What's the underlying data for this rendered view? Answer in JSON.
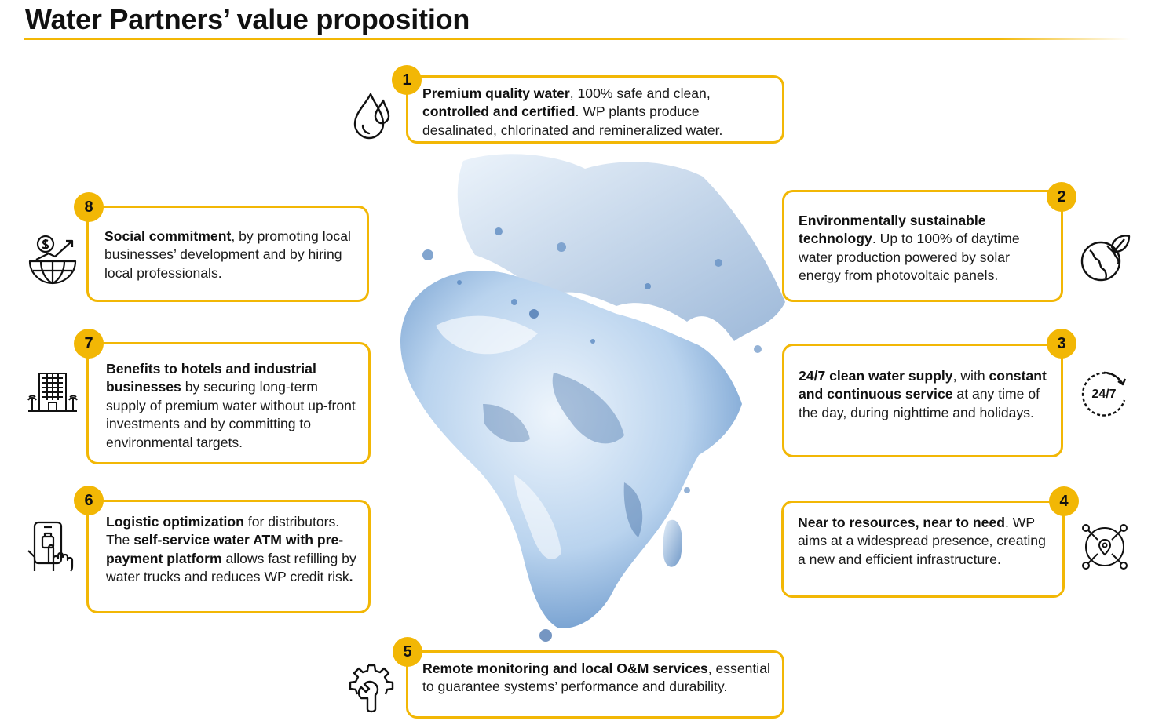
{
  "title": "Water Partners’ value proposition",
  "items": [
    {
      "number": "1",
      "icon": "water-drops-icon",
      "parts": [
        {
          "t": "Premium quality water",
          "b": true
        },
        {
          "t": ", 100% safe and clean, ",
          "b": false
        },
        {
          "t": "controlled and certified",
          "b": true
        },
        {
          "t": ". WP plants produce desalinated, chlorinated and remineralized water.",
          "b": false
        }
      ]
    },
    {
      "number": "2",
      "icon": "eco-globe-icon",
      "parts": [
        {
          "t": "Environmentally sustainable technology",
          "b": true
        },
        {
          "t": ". Up to 100% of daytime water production powered by solar energy from photovoltaic panels.",
          "b": false
        }
      ]
    },
    {
      "number": "3",
      "icon": "24-7-icon",
      "icon_text": "24/7",
      "parts": [
        {
          "t": "24/7 clean water supply",
          "b": true
        },
        {
          "t": ", with ",
          "b": false
        },
        {
          "t": "constant and continuous service",
          "b": true
        },
        {
          "t": " at any time of the day, during nighttime and holidays.",
          "b": false
        }
      ]
    },
    {
      "number": "4",
      "icon": "network-pins-icon",
      "parts": [
        {
          "t": "Near to resources, near to need",
          "b": true
        },
        {
          "t": ". WP aims at a widespread presence, creating a new and efficient infrastructure.",
          "b": false
        }
      ]
    },
    {
      "number": "5",
      "icon": "gear-wrench-icon",
      "parts": [
        {
          "t": "Remote monitoring and local O&M services",
          "b": true
        },
        {
          "t": ", essential to guarantee systems’ performance and durability.",
          "b": false
        }
      ]
    },
    {
      "number": "6",
      "icon": "mobile-payment-icon",
      "parts": [
        {
          "t": "Logistic optimization",
          "b": true
        },
        {
          "t": " for distributors. The ",
          "b": false
        },
        {
          "t": "self-service water ATM with pre-payment platform",
          "b": true
        },
        {
          "t": " allows fast refilling by water trucks and reduces WP credit risk",
          "b": false
        },
        {
          "t": ".",
          "b": true
        }
      ]
    },
    {
      "number": "7",
      "icon": "hotel-building-icon",
      "parts": [
        {
          "t": "Benefits to hotels and industrial businesses",
          "b": true
        },
        {
          "t": " by securing long-term supply of premium water without up-front investments and by committing to environmental targets.",
          "b": false
        }
      ]
    },
    {
      "number": "8",
      "icon": "social-globe-icon",
      "parts": [
        {
          "t": "Social commitment",
          "b": true
        },
        {
          "t": ", by promoting local businesses’ development and by hiring local professionals.",
          "b": false
        }
      ]
    }
  ],
  "colors": {
    "accent": "#f2b705",
    "water": "#6f9fd0",
    "water_dark": "#1f4f8f"
  }
}
